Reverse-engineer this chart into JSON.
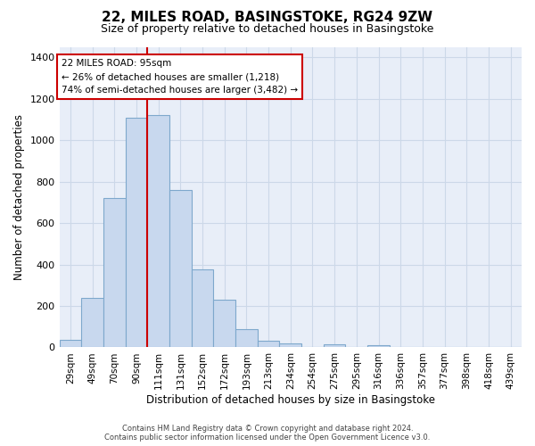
{
  "title": "22, MILES ROAD, BASINGSTOKE, RG24 9ZW",
  "subtitle": "Size of property relative to detached houses in Basingstoke",
  "xlabel": "Distribution of detached houses by size in Basingstoke",
  "ylabel": "Number of detached properties",
  "footer_line1": "Contains HM Land Registry data © Crown copyright and database right 2024.",
  "footer_line2": "Contains public sector information licensed under the Open Government Licence v3.0.",
  "bar_labels": [
    "29sqm",
    "49sqm",
    "70sqm",
    "90sqm",
    "111sqm",
    "131sqm",
    "152sqm",
    "172sqm",
    "193sqm",
    "213sqm",
    "234sqm",
    "254sqm",
    "275sqm",
    "295sqm",
    "316sqm",
    "336sqm",
    "357sqm",
    "377sqm",
    "398sqm",
    "418sqm",
    "439sqm"
  ],
  "bar_values": [
    35,
    240,
    720,
    1110,
    1120,
    760,
    375,
    230,
    90,
    30,
    20,
    0,
    15,
    0,
    10,
    0,
    0,
    0,
    0,
    0,
    0
  ],
  "bar_color": "#c8d8ee",
  "bar_edgecolor": "#7ea8cc",
  "vline_x_index": 3.5,
  "vline_color": "#cc0000",
  "annotation_title": "22 MILES ROAD: 95sqm",
  "annotation_line1": "← 26% of detached houses are smaller (1,218)",
  "annotation_line2": "74% of semi-detached houses are larger (3,482) →",
  "annotation_box_facecolor": "#ffffff",
  "annotation_box_edgecolor": "#cc0000",
  "ylim": [
    0,
    1450
  ],
  "yticks": [
    0,
    200,
    400,
    600,
    800,
    1000,
    1200,
    1400
  ],
  "background_color": "#ffffff",
  "grid_color": "#ccd8e8"
}
